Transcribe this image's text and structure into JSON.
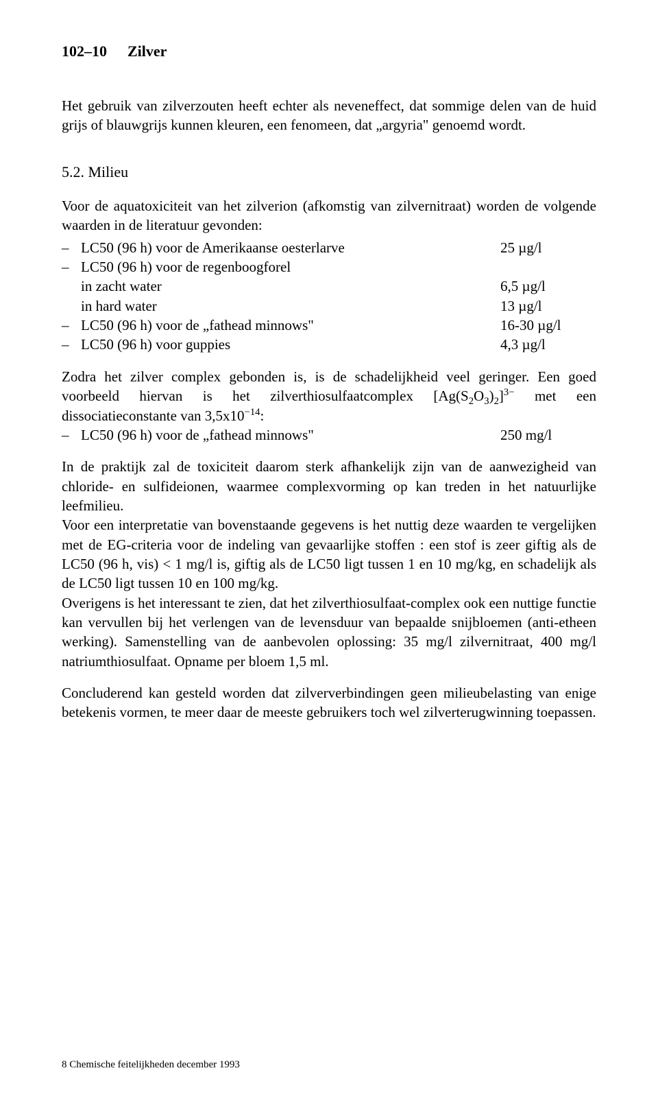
{
  "header": {
    "page_num": "102–10",
    "title": "Zilver"
  },
  "para1": "Het gebruik van zilverzouten heeft echter als neveneffect, dat sommige delen van de huid grijs of blauwgrijs kunnen kleuren, een fenomeen, dat „argyria\" genoemd wordt.",
  "section": "5.2.   Milieu",
  "para2": "Voor de aquatoxiciteit van het zilverion (afkomstig van zilvernitraat) worden de volgende waarden in de literatuur gevonden:",
  "list1": [
    {
      "label": "LC50 (96 h) voor de Amerikaanse oesterlarve",
      "value": "25 µg/l"
    },
    {
      "label": "LC50 (96 h) voor de regenboogforel",
      "value": ""
    }
  ],
  "sublist1": [
    {
      "label": "in zacht water",
      "value": "6,5 µg/l"
    },
    {
      "label": "in hard water",
      "value": "13 µg/l"
    }
  ],
  "list1b": [
    {
      "label": "LC50 (96 h) voor de „fathead minnows\"",
      "value": "16-30 µg/l"
    },
    {
      "label": "LC50 (96 h) voor guppies",
      "value": "4,3 µg/l"
    }
  ],
  "para3a": "Zodra het zilver complex gebonden is, is de schadelijkheid veel geringer. Een goed voorbeeld hiervan is het zilverthiosulfaatcomplex [Ag(S",
  "para3_sub1": "2",
  "para3b": "O",
  "para3_sub2": "3",
  "para3c": ")",
  "para3_sub3": "2",
  "para3d": "]",
  "para3_sup1": "3−",
  "para3e": " met een dissociatieconstante van 3,5x10",
  "para3_sup2": "−14",
  "para3f": ":",
  "list2": [
    {
      "label": "LC50 (96 h) voor de „fathead minnows\"",
      "value": "250 mg/l"
    }
  ],
  "para4": "In de praktijk zal de toxiciteit daarom sterk afhankelijk zijn van de aanwezigheid van chloride- en sulfideionen, waarmee complexvorming op kan treden in het natuurlijke leefmilieu.",
  "para5": "Voor een interpretatie van bovenstaande gegevens is het nuttig deze waarden te vergelijken met de EG-criteria voor de indeling van gevaarlijke stoffen : een stof is zeer giftig als de LC50 (96 h, vis) < 1 mg/l is, giftig als de LC50 ligt tussen 1 en 10 mg/kg, en schadelijk als de LC50 ligt tussen 10 en 100 mg/kg.",
  "para6": "Overigens is het interessant te zien, dat het zilverthiosulfaat-complex ook een nuttige functie kan vervullen bij het verlengen van de levensduur van bepaalde snijbloemen (anti-etheen werking). Samenstelling van de aanbevolen oplossing: 35 mg/l zilvernitraat, 400 mg/l natriumthiosulfaat. Opname per bloem 1,5 ml.",
  "para7": "Concluderend kan gesteld worden dat zilververbindingen geen milieubelasting van enige betekenis vormen, te meer daar de meeste gebruikers toch wel zilverterugwinning toepassen.",
  "footer": "8 Chemische feitelijkheden   december 1993"
}
